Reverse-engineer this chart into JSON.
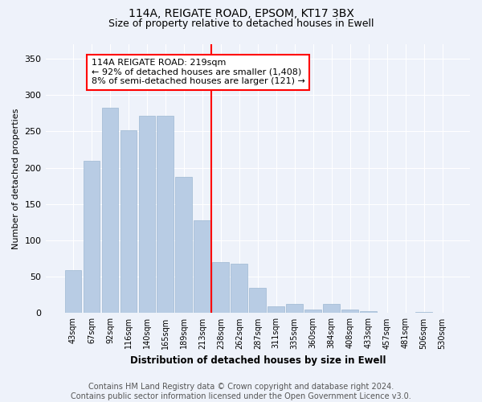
{
  "title": "114A, REIGATE ROAD, EPSOM, KT17 3BX",
  "subtitle": "Size of property relative to detached houses in Ewell",
  "xlabel": "Distribution of detached houses by size in Ewell",
  "ylabel": "Number of detached properties",
  "bar_labels": [
    "43sqm",
    "67sqm",
    "92sqm",
    "116sqm",
    "140sqm",
    "165sqm",
    "189sqm",
    "213sqm",
    "238sqm",
    "262sqm",
    "287sqm",
    "311sqm",
    "335sqm",
    "360sqm",
    "384sqm",
    "408sqm",
    "433sqm",
    "457sqm",
    "481sqm",
    "506sqm",
    "530sqm"
  ],
  "bar_values": [
    59,
    210,
    283,
    252,
    271,
    271,
    188,
    128,
    70,
    68,
    35,
    9,
    13,
    5,
    13,
    5,
    3,
    1,
    0,
    2,
    1
  ],
  "bar_color": "#b8cce4",
  "bar_edgecolor": "#9db8d2",
  "vline_color": "red",
  "vline_x": 7.5,
  "annotation_text": "114A REIGATE ROAD: 219sqm\n← 92% of detached houses are smaller (1,408)\n8% of semi-detached houses are larger (121) →",
  "annotation_box_color": "white",
  "annotation_box_edgecolor": "red",
  "ylim": [
    0,
    370
  ],
  "yticks": [
    0,
    50,
    100,
    150,
    200,
    250,
    300,
    350
  ],
  "footer_text": "Contains HM Land Registry data © Crown copyright and database right 2024.\nContains public sector information licensed under the Open Government Licence v3.0.",
  "bg_color": "#eef2fa",
  "grid_color": "#ffffff",
  "title_fontsize": 10,
  "subtitle_fontsize": 9,
  "annotation_fontsize": 8,
  "footer_fontsize": 7,
  "ylabel_fontsize": 8,
  "xlabel_fontsize": 8.5
}
